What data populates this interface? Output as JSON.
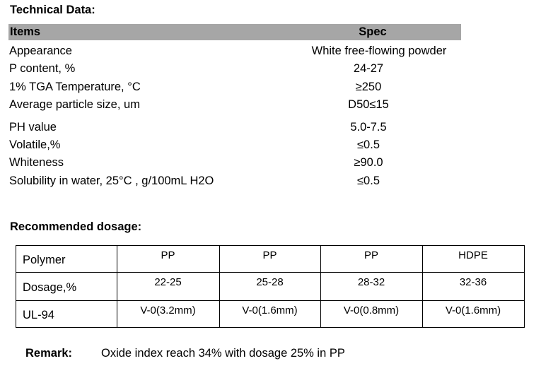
{
  "title": "Technical Data:",
  "spec_table": {
    "header": [
      "Items",
      "Spec"
    ],
    "rows": [
      [
        "Appearance",
        "White free-flowing powder"
      ],
      [
        "P content, %",
        "24-27"
      ],
      [
        "1% TGA Temperature, °C",
        "≥250"
      ],
      [
        "Average particle size, um",
        "D50≤15"
      ],
      [
        "PH value",
        "5.0-7.5"
      ],
      [
        "Volatile,%",
        "≤0.5"
      ],
      [
        "Whiteness",
        "≥90.0"
      ],
      [
        "Solubility in water, 25°C , g/100mL H2O",
        "≤0.5"
      ]
    ]
  },
  "dosage": {
    "title": "Recommended dosage:",
    "rows": [
      [
        "Polymer",
        "PP",
        "PP",
        "PP",
        "HDPE"
      ],
      [
        "Dosage,%",
        "22-25",
        "25-28",
        "28-32",
        "32-36"
      ],
      [
        "UL-94",
        "V-0(3.2mm)",
        "V-0(1.6mm)",
        "V-0(0.8mm)",
        "V-0(1.6mm)"
      ]
    ]
  },
  "remark": {
    "label": "Remark:",
    "text": "Oxide index reach 34% with dosage 25% in PP"
  }
}
